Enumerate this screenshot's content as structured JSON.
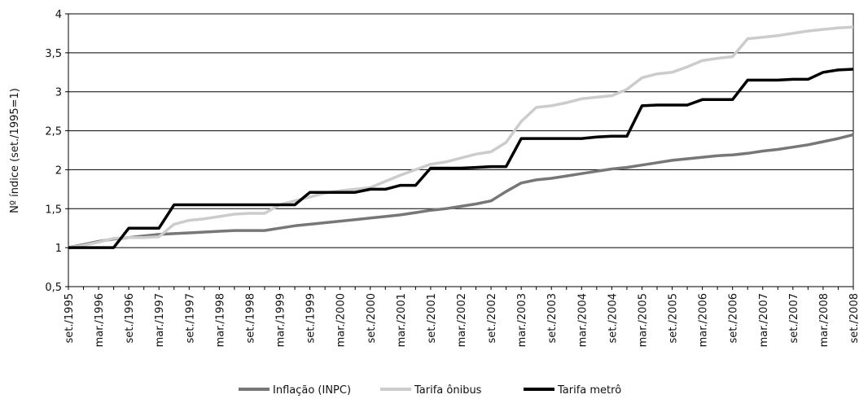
{
  "chart_data": {
    "type": "line",
    "y_label": "Nº índice (set./1995=1)",
    "categories": [
      "set./1995",
      null,
      "mar./1996",
      null,
      "set./1996",
      null,
      "mar./1997",
      null,
      "set./1997",
      null,
      "mar./1998",
      null,
      "set./1998",
      null,
      "mar./1999",
      null,
      "set./1999",
      null,
      "mar./2000",
      null,
      "set./2000",
      null,
      "mar./2001",
      null,
      "set./2001",
      null,
      "mar./2002",
      null,
      "set./2002",
      null,
      "mar./2003",
      null,
      "set./2003",
      null,
      "mar./2004",
      null,
      "set./2004",
      null,
      "mar./2005",
      null,
      "set./2005",
      null,
      "mar./2006",
      null,
      "set./2006",
      null,
      "mar./2007",
      null,
      "set./2007",
      null,
      "mar./2008",
      null,
      "set./2008"
    ],
    "series": [
      {
        "name": "Inflação (INPC)",
        "color": "#777777",
        "values": [
          1.0,
          1.04,
          1.08,
          1.11,
          1.13,
          1.15,
          1.17,
          1.18,
          1.19,
          1.2,
          1.21,
          1.22,
          1.22,
          1.22,
          1.25,
          1.28,
          1.3,
          1.32,
          1.34,
          1.36,
          1.38,
          1.4,
          1.42,
          1.45,
          1.48,
          1.5,
          1.53,
          1.56,
          1.6,
          1.72,
          1.83,
          1.87,
          1.89,
          1.92,
          1.95,
          1.98,
          2.01,
          2.03,
          2.06,
          2.09,
          2.12,
          2.14,
          2.16,
          2.18,
          2.19,
          2.21,
          2.24,
          2.26,
          2.29,
          2.32,
          2.36,
          2.4,
          2.45
        ]
      },
      {
        "name": "Tarifa ônibus",
        "color": "#cccccc",
        "values": [
          1.0,
          1.03,
          1.07,
          1.12,
          1.13,
          1.13,
          1.14,
          1.3,
          1.35,
          1.37,
          1.4,
          1.43,
          1.44,
          1.44,
          1.55,
          1.6,
          1.65,
          1.7,
          1.73,
          1.75,
          1.77,
          1.85,
          1.93,
          2.0,
          2.07,
          2.1,
          2.15,
          2.2,
          2.23,
          2.35,
          2.62,
          2.8,
          2.82,
          2.86,
          2.91,
          2.93,
          2.95,
          3.03,
          3.18,
          3.23,
          3.25,
          3.32,
          3.4,
          3.43,
          3.45,
          3.68,
          3.7,
          3.72,
          3.75,
          3.78,
          3.8,
          3.82,
          3.83
        ]
      },
      {
        "name": "Tarifa metrô",
        "color": "#000000",
        "values": [
          1.0,
          1.0,
          1.0,
          1.0,
          1.25,
          1.25,
          1.25,
          1.55,
          1.55,
          1.55,
          1.55,
          1.55,
          1.55,
          1.55,
          1.55,
          1.55,
          1.71,
          1.71,
          1.71,
          1.71,
          1.75,
          1.75,
          1.8,
          1.8,
          2.02,
          2.02,
          2.02,
          2.03,
          2.04,
          2.04,
          2.4,
          2.4,
          2.4,
          2.4,
          2.4,
          2.42,
          2.43,
          2.43,
          2.82,
          2.83,
          2.83,
          2.83,
          2.9,
          2.9,
          2.9,
          3.15,
          3.15,
          3.15,
          3.16,
          3.16,
          3.25,
          3.28,
          3.29
        ]
      }
    ],
    "ylim": [
      0.5,
      4
    ],
    "yticks": [
      {
        "value": 0.5,
        "label": "0,5"
      },
      1,
      {
        "value": 1.5,
        "label": "1,5"
      },
      2,
      {
        "value": 2.5,
        "label": "2,5"
      },
      3,
      {
        "value": 3.5,
        "label": "3,5"
      },
      4
    ],
    "grid": true,
    "legend": "bottom"
  }
}
